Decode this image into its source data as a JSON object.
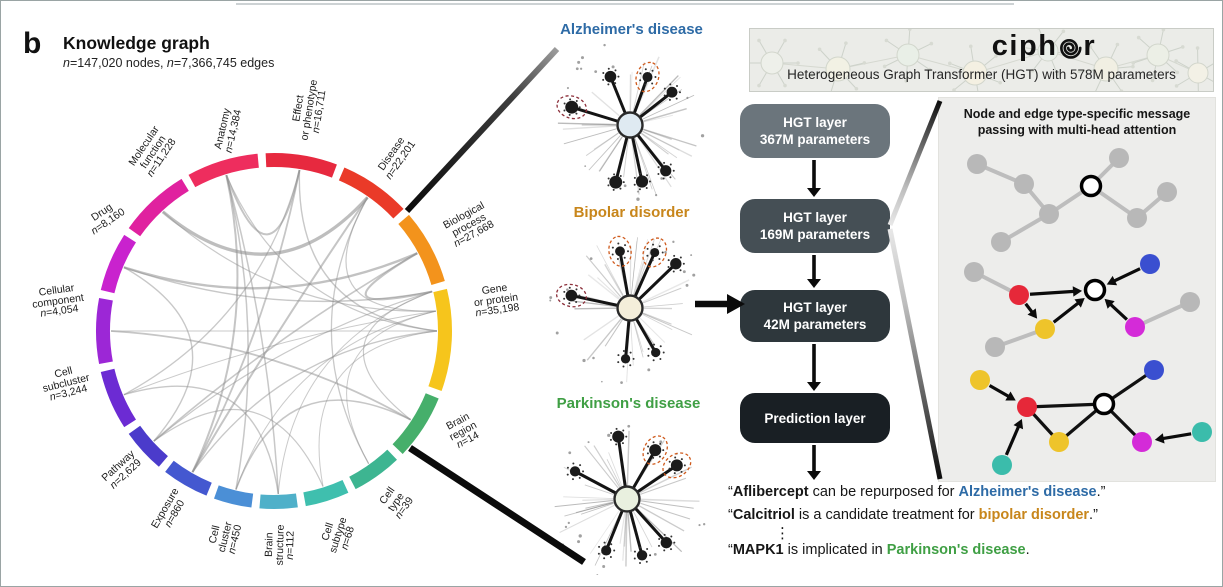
{
  "panel_label": "b",
  "knowledge_graph": {
    "title": "Knowledge graph",
    "subtitle": "n=147,020 nodes, n=7,366,745 edges",
    "categories": [
      {
        "name": "effect_or_phenotype",
        "lines": [
          "Effect",
          "or phenotype",
          "n=16,711"
        ],
        "span": 26,
        "color": "#e7293f",
        "lr": 224
      },
      {
        "name": "disease",
        "lines": [
          "Disease",
          "n=22,201"
        ],
        "span": 26,
        "color": "#ea3a28",
        "lr": 212
      },
      {
        "name": "biological_process",
        "lines": [
          "Biological",
          "process",
          "n=27,668"
        ],
        "span": 27,
        "color": "#f3931c",
        "lr": 222
      },
      {
        "name": "gene_or_protein",
        "lines": [
          "Gene",
          "or protein",
          "n=35,198"
        ],
        "span": 36,
        "color": "#f6c51c",
        "lr": 224,
        "la": 8
      },
      {
        "name": "brain_region",
        "lines": [
          "Brain",
          "region",
          "n=14"
        ],
        "span": 24,
        "color": "#46af6b",
        "lr": 214,
        "la": -28
      },
      {
        "name": "cell_type",
        "lines": [
          "Cell",
          "type",
          "n=39"
        ],
        "span": 19,
        "color": "#3db591",
        "lr": 210
      },
      {
        "name": "cell_subtype",
        "lines": [
          "Cell",
          "subtype",
          "n=68"
        ],
        "span": 17,
        "color": "#3fbfae",
        "lr": 214
      },
      {
        "name": "brain_structure",
        "lines": [
          "Brain",
          "structure",
          "n=112"
        ],
        "span": 15,
        "color": "#4fb0c9",
        "lr": 214
      },
      {
        "name": "cell_cluster",
        "lines": [
          "Cell",
          "cluster",
          "n=450"
        ],
        "span": 15,
        "color": "#4b8fd6",
        "lr": 212
      },
      {
        "name": "exposure",
        "lines": [
          "Exposure",
          "n=860"
        ],
        "span": 18,
        "color": "#4458d0",
        "lr": 208
      },
      {
        "name": "pathway",
        "lines": [
          "Pathway",
          "n=2,629"
        ],
        "span": 17,
        "color": "#4b3bcb",
        "lr": 206
      },
      {
        "name": "cell_subcluster",
        "lines": [
          "Cell",
          "subcluster",
          "n=3,244"
        ],
        "span": 22,
        "color": "#6c2bd3",
        "lr": 214,
        "la": -166
      },
      {
        "name": "cellular_component",
        "lines": [
          "Cellular",
          "component",
          "n=4,054"
        ],
        "span": 24,
        "color": "#9c27d6",
        "lr": 218,
        "la": 172
      },
      {
        "name": "drug",
        "lines": [
          "Drug",
          "n=8,160"
        ],
        "span": 22,
        "color": "#c922ce",
        "lr": 204,
        "la": 146
      },
      {
        "name": "molecular_function",
        "lines": [
          "Molecular",
          "function",
          "n=11,228"
        ],
        "span": 26,
        "color": "#e0219f",
        "lr": 216,
        "la": 124
      },
      {
        "name": "anatomy",
        "lines": [
          "Anatomy",
          "n=14,384"
        ],
        "span": 26,
        "color": "#ee2d5e",
        "lr": 206,
        "la": 103
      }
    ],
    "chords": [
      [
        "effect_or_phenotype",
        "gene_or_protein",
        1.4
      ],
      [
        "disease",
        "gene_or_protein",
        1.2
      ],
      [
        "biological_process",
        "gene_or_protein",
        2.2
      ],
      [
        "anatomy",
        "gene_or_protein",
        1.2
      ],
      [
        "molecular_function",
        "gene_or_protein",
        1.2
      ],
      [
        "drug",
        "gene_or_protein",
        1.4
      ],
      [
        "cellular_component",
        "gene_or_protein",
        1.0
      ],
      [
        "cell_subcluster",
        "gene_or_protein",
        1.0
      ],
      [
        "pathway",
        "gene_or_protein",
        1.2
      ],
      [
        "exposure",
        "gene_or_protein",
        1.4
      ],
      [
        "cell_cluster",
        "gene_or_protein",
        1.0
      ],
      [
        "brain_structure",
        "gene_or_protein",
        1.0
      ],
      [
        "cell_subtype",
        "gene_or_protein",
        1.0
      ],
      [
        "cell_type",
        "gene_or_protein",
        1.0
      ],
      [
        "brain_region",
        "gene_or_protein",
        1.2
      ],
      [
        "molecular_function",
        "disease",
        3.2
      ],
      [
        "drug",
        "biological_process",
        2.4
      ],
      [
        "anatomy",
        "exposure",
        2.0
      ],
      [
        "cellular_component",
        "brain_region",
        1.8
      ],
      [
        "pathway",
        "biological_process",
        1.6
      ],
      [
        "exposure",
        "effect_or_phenotype",
        1.8
      ],
      [
        "cell_cluster",
        "brain_region",
        1.6
      ],
      [
        "brain_structure",
        "anatomy",
        1.5
      ],
      [
        "cell_subtype",
        "pathway",
        1.2
      ],
      [
        "disease",
        "exposure",
        2.0
      ],
      [
        "effect_or_phenotype",
        "anatomy",
        2.0
      ],
      [
        "drug",
        "pathway",
        1.4
      ],
      [
        "cell_subcluster",
        "brain_structure",
        1.4
      ],
      [
        "anatomy",
        "cell_cluster",
        1.5
      ],
      [
        "effect_or_phenotype",
        "cell_subcluster",
        1.3
      ],
      [
        "disease",
        "cell_type",
        1.3
      ]
    ]
  },
  "subgraphs": [
    {
      "title": "Alzheimer's disease",
      "title_color": "#2e6ba6",
      "center_color": "#dfeaf2"
    },
    {
      "title": "Bipolar disorder",
      "title_color": "#c8861b",
      "center_color": "#f4eeda"
    },
    {
      "title": "Parkinson's disease",
      "title_color": "#3f9f44",
      "center_color": "#e9f0df"
    }
  ],
  "model": {
    "logo_text_1": "ciph",
    "logo_text_2": "r",
    "banner_subtitle": "Heterogeneous Graph Transformer (HGT) with 578M parameters",
    "layers": [
      {
        "line1": "HGT layer",
        "line2": "367M parameters",
        "color": "#6b757c"
      },
      {
        "line1": "HGT layer",
        "line2": "169M parameters",
        "color": "#454f55"
      },
      {
        "line1": "HGT layer",
        "line2": "42M parameters",
        "color": "#2e373c"
      },
      {
        "line1": "Prediction layer",
        "line2": "",
        "color": "#191f24"
      }
    ],
    "message_panel": {
      "title_line1": "Node and edge type-specific message",
      "title_line2": "passing with multi-head attention",
      "colors": {
        "gray": "#b8b8b8",
        "red": "#e62839",
        "blue": "#3a4fd0",
        "yellow": "#eec42b",
        "magenta": "#d42bd8",
        "teal": "#3bbcab",
        "white": "#ffffff"
      }
    }
  },
  "predictions": {
    "sentences": [
      {
        "parts": [
          {
            "t": "“"
          },
          {
            "t": "Aflibercept",
            "b": true
          },
          {
            "t": " can be repurposed for "
          },
          {
            "t": "Alzheimer's disease",
            "b": true,
            "c": "#2e6ba6"
          },
          {
            "t": ".”"
          }
        ]
      },
      {
        "parts": [
          {
            "t": "“"
          },
          {
            "t": "Calcitriol",
            "b": true
          },
          {
            "t": " is a candidate treatment for "
          },
          {
            "t": "bipolar disorder",
            "b": true,
            "c": "#c8861b"
          },
          {
            "t": ".”"
          }
        ]
      },
      {
        "parts": [
          {
            "t": "“"
          },
          {
            "t": "MAPK1",
            "b": true
          },
          {
            "t": " is implicated in "
          },
          {
            "t": "Parkinson's disease",
            "b": true,
            "c": "#3f9f44"
          },
          {
            "t": "."
          }
        ]
      }
    ],
    "ellipsis": "⋮"
  }
}
